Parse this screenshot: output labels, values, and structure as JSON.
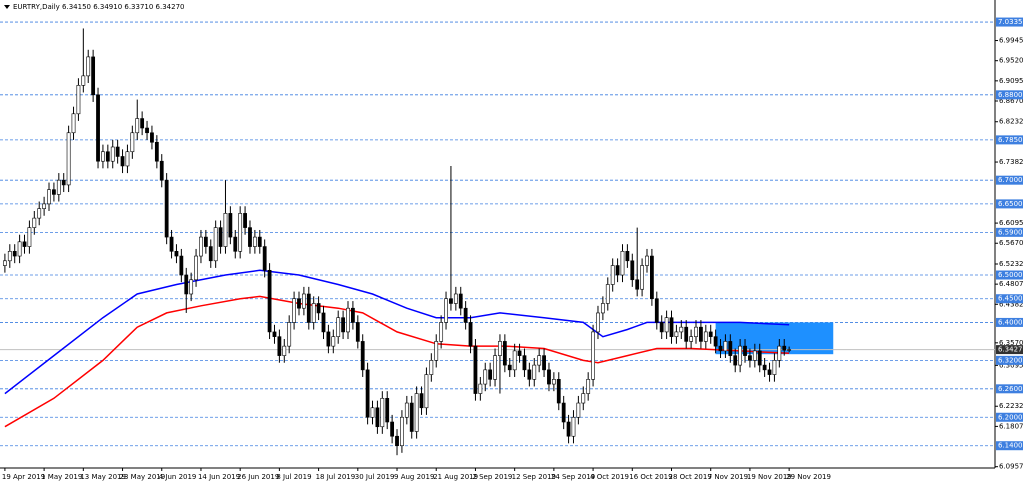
{
  "chart_data": {
    "type": "candlestick",
    "title": "EURTRY,Daily  6.34150 6.34910 6.33710 6.34270",
    "xlim": [
      -1,
      202
    ],
    "ylim": [
      6.093,
      7.08
    ],
    "up_color": "#ffffff",
    "down_color": "#000000",
    "xticks": [
      {
        "value": 0,
        "label": "19 Apr 2019"
      },
      {
        "value": 8,
        "label": "1 May 2019"
      },
      {
        "value": 16,
        "label": "13 May 2019"
      },
      {
        "value": 24,
        "label": "23 May 2019"
      },
      {
        "value": 32,
        "label": "4 Jun 2019"
      },
      {
        "value": 40,
        "label": "14 Jun 2019"
      },
      {
        "value": 48,
        "label": "26 Jun 2019"
      },
      {
        "value": 56,
        "label": "8 Jul 2019"
      },
      {
        "value": 64,
        "label": "18 Jul 2019"
      },
      {
        "value": 72,
        "label": "30 Jul 2019"
      },
      {
        "value": 80,
        "label": "9 Aug 2019"
      },
      {
        "value": 88,
        "label": "21 Aug 2019"
      },
      {
        "value": 96,
        "label": "2 Sep 2019"
      },
      {
        "value": 104,
        "label": "12 Sep 2019"
      },
      {
        "value": 112,
        "label": "24 Sep 2019"
      },
      {
        "value": 120,
        "label": "4 Oct 2019"
      },
      {
        "value": 128,
        "label": "16 Oct 2019"
      },
      {
        "value": 136,
        "label": "28 Oct 2019"
      },
      {
        "value": 144,
        "label": "7 Nov 2019"
      },
      {
        "value": 152,
        "label": "19 Nov 2019"
      },
      {
        "value": 160,
        "label": "29 Nov 2019"
      }
    ],
    "yticks": [
      {
        "value": 6.9945,
        "label": "6.99450"
      },
      {
        "value": 6.952,
        "label": "6.95200"
      },
      {
        "value": 6.9095,
        "label": "6.90950"
      },
      {
        "value": 6.867,
        "label": "6.86700"
      },
      {
        "value": 6.82325,
        "label": "6.82325"
      },
      {
        "value": 6.73825,
        "label": "6.73825"
      },
      {
        "value": 6.6095,
        "label": "6.60950"
      },
      {
        "value": 6.567,
        "label": "6.56700"
      },
      {
        "value": 6.52325,
        "label": "6.52325"
      },
      {
        "value": 6.48075,
        "label": "6.48075"
      },
      {
        "value": 6.43825,
        "label": "6.43825"
      },
      {
        "value": 6.357,
        "label": "6.35700"
      },
      {
        "value": 6.3095,
        "label": "6.30950"
      },
      {
        "value": 6.22325,
        "label": "6.22325"
      },
      {
        "value": 6.18075,
        "label": "6.18075"
      },
      {
        "value": 6.09575,
        "label": "6.09575"
      }
    ],
    "levels": {
      "color": "#3d7fe0",
      "ticks": [
        {
          "value": 7.0335,
          "label": "7.03350"
        },
        {
          "value": 6.88,
          "label": "6.88000"
        },
        {
          "value": 6.785,
          "label": "6.78500"
        },
        {
          "value": 6.7,
          "label": "6.70000"
        },
        {
          "value": 6.65,
          "label": "6.65000"
        },
        {
          "value": 6.59,
          "label": "6.59000"
        },
        {
          "value": 6.5,
          "label": "6.50000"
        },
        {
          "value": 6.45,
          "label": "6.45000"
        },
        {
          "value": 6.4,
          "label": "6.40000"
        },
        {
          "value": 6.32,
          "label": "6.32000"
        },
        {
          "value": 6.26,
          "label": "6.26000"
        },
        {
          "value": 6.2,
          "label": "6.20000"
        },
        {
          "value": 6.14,
          "label": "6.14000"
        }
      ]
    },
    "last_price": {
      "value": 6.3427,
      "label": "6.34270"
    },
    "zone": {
      "color": "#1e90ff",
      "x": [
        145,
        169
      ],
      "y": [
        6.4,
        6.333
      ]
    },
    "series": [
      {
        "color": "#0000ff",
        "x": [
          0,
          10,
          20,
          27,
          35,
          45,
          52,
          60,
          68,
          75,
          82,
          88,
          95,
          101,
          110,
          118,
          122,
          127,
          131,
          140,
          150,
          160
        ],
        "values": [
          6.25,
          6.33,
          6.41,
          6.46,
          6.48,
          6.5,
          6.51,
          6.5,
          6.48,
          6.46,
          6.43,
          6.41,
          6.41,
          6.42,
          6.41,
          6.4,
          6.37,
          6.385,
          6.4,
          6.4,
          6.4,
          6.395
        ]
      },
      {
        "color": "#ff0000",
        "x": [
          0,
          10,
          20,
          27,
          33,
          40,
          48,
          52,
          60,
          68,
          73,
          80,
          88,
          95,
          102,
          110,
          118,
          121,
          127,
          133,
          140,
          150,
          160
        ],
        "values": [
          6.18,
          6.24,
          6.32,
          6.39,
          6.42,
          6.435,
          6.45,
          6.455,
          6.44,
          6.43,
          6.42,
          6.38,
          6.355,
          6.35,
          6.35,
          6.345,
          6.32,
          6.315,
          6.33,
          6.345,
          6.345,
          6.34,
          6.335
        ]
      }
    ],
    "candles": [
      [
        6.52,
        6.545,
        6.505,
        6.53
      ],
      [
        6.53,
        6.565,
        6.515,
        6.55
      ],
      [
        6.55,
        6.565,
        6.525,
        6.54
      ],
      [
        6.54,
        6.585,
        6.525,
        6.57
      ],
      [
        6.57,
        6.585,
        6.545,
        6.56
      ],
      [
        6.56,
        6.615,
        6.545,
        6.6
      ],
      [
        6.6,
        6.635,
        6.585,
        6.62
      ],
      [
        6.62,
        6.655,
        6.605,
        6.64
      ],
      [
        6.64,
        6.665,
        6.625,
        6.65
      ],
      [
        6.65,
        6.695,
        6.635,
        6.68
      ],
      [
        6.68,
        6.695,
        6.655,
        6.67
      ],
      [
        6.67,
        6.715,
        6.655,
        6.7
      ],
      [
        6.7,
        6.715,
        6.675,
        6.69
      ],
      [
        6.69,
        6.815,
        6.675,
        6.8
      ],
      [
        6.8,
        6.855,
        6.785,
        6.84
      ],
      [
        6.84,
        6.915,
        6.825,
        6.9
      ],
      [
        6.9,
        7.02,
        6.885,
        6.92
      ],
      [
        6.92,
        6.975,
        6.905,
        6.96
      ],
      [
        6.96,
        6.975,
        6.865,
        6.88
      ],
      [
        6.88,
        6.895,
        6.725,
        6.74
      ],
      [
        6.74,
        6.775,
        6.725,
        6.76
      ],
      [
        6.76,
        6.775,
        6.725,
        6.74
      ],
      [
        6.74,
        6.785,
        6.725,
        6.77
      ],
      [
        6.77,
        6.785,
        6.735,
        6.75
      ],
      [
        6.75,
        6.765,
        6.715,
        6.73
      ],
      [
        6.73,
        6.775,
        6.715,
        6.76
      ],
      [
        6.76,
        6.815,
        6.745,
        6.8
      ],
      [
        6.8,
        6.87,
        6.785,
        6.83
      ],
      [
        6.83,
        6.845,
        6.795,
        6.81
      ],
      [
        6.81,
        6.825,
        6.785,
        6.8
      ],
      [
        6.8,
        6.815,
        6.765,
        6.78
      ],
      [
        6.78,
        6.795,
        6.725,
        6.74
      ],
      [
        6.74,
        6.755,
        6.685,
        6.7
      ],
      [
        6.7,
        6.715,
        6.565,
        6.58
      ],
      [
        6.58,
        6.595,
        6.535,
        6.55
      ],
      [
        6.55,
        6.565,
        6.525,
        6.54
      ],
      [
        6.54,
        6.555,
        6.485,
        6.5
      ],
      [
        6.5,
        6.515,
        6.42,
        6.46
      ],
      [
        6.46,
        6.505,
        6.445,
        6.49
      ],
      [
        6.49,
        6.555,
        6.475,
        6.54
      ],
      [
        6.54,
        6.595,
        6.525,
        6.58
      ],
      [
        6.58,
        6.595,
        6.545,
        6.56
      ],
      [
        6.56,
        6.575,
        6.515,
        6.53
      ],
      [
        6.53,
        6.615,
        6.515,
        6.6
      ],
      [
        6.6,
        6.615,
        6.545,
        6.56
      ],
      [
        6.56,
        6.7,
        6.545,
        6.63
      ],
      [
        6.63,
        6.645,
        6.565,
        6.58
      ],
      [
        6.58,
        6.595,
        6.535,
        6.55
      ],
      [
        6.55,
        6.645,
        6.535,
        6.63
      ],
      [
        6.63,
        6.645,
        6.585,
        6.6
      ],
      [
        6.6,
        6.615,
        6.545,
        6.56
      ],
      [
        6.56,
        6.595,
        6.545,
        6.58
      ],
      [
        6.58,
        6.595,
        6.545,
        6.56
      ],
      [
        6.56,
        6.575,
        6.495,
        6.51
      ],
      [
        6.51,
        6.525,
        6.365,
        6.38
      ],
      [
        6.38,
        6.395,
        6.355,
        6.37
      ],
      [
        6.37,
        6.385,
        6.315,
        6.33
      ],
      [
        6.33,
        6.365,
        6.315,
        6.35
      ],
      [
        6.35,
        6.415,
        6.335,
        6.4
      ],
      [
        6.4,
        6.465,
        6.385,
        6.45
      ],
      [
        6.45,
        6.465,
        6.415,
        6.43
      ],
      [
        6.43,
        6.475,
        6.415,
        6.46
      ],
      [
        6.46,
        6.475,
        6.385,
        6.4
      ],
      [
        6.4,
        6.455,
        6.385,
        6.44
      ],
      [
        6.44,
        6.455,
        6.405,
        6.42
      ],
      [
        6.42,
        6.435,
        6.365,
        6.38
      ],
      [
        6.38,
        6.395,
        6.335,
        6.35
      ],
      [
        6.35,
        6.385,
        6.335,
        6.37
      ],
      [
        6.37,
        6.425,
        6.355,
        6.41
      ],
      [
        6.41,
        6.425,
        6.365,
        6.38
      ],
      [
        6.38,
        6.445,
        6.365,
        6.43
      ],
      [
        6.43,
        6.445,
        6.385,
        6.4
      ],
      [
        6.4,
        6.415,
        6.345,
        6.36
      ],
      [
        6.36,
        6.375,
        6.285,
        6.3
      ],
      [
        6.3,
        6.315,
        6.185,
        6.2
      ],
      [
        6.2,
        6.235,
        6.185,
        6.22
      ],
      [
        6.22,
        6.235,
        6.165,
        6.18
      ],
      [
        6.18,
        6.255,
        6.165,
        6.24
      ],
      [
        6.24,
        6.255,
        6.175,
        6.19
      ],
      [
        6.19,
        6.205,
        6.145,
        6.16
      ],
      [
        6.16,
        6.175,
        6.12,
        6.14
      ],
      [
        6.14,
        6.215,
        6.125,
        6.2
      ],
      [
        6.2,
        6.245,
        6.185,
        6.23
      ],
      [
        6.23,
        6.245,
        6.155,
        6.17
      ],
      [
        6.17,
        6.265,
        6.155,
        6.25
      ],
      [
        6.25,
        6.265,
        6.205,
        6.22
      ],
      [
        6.22,
        6.305,
        6.205,
        6.29
      ],
      [
        6.29,
        6.335,
        6.275,
        6.32
      ],
      [
        6.32,
        6.375,
        6.305,
        6.36
      ],
      [
        6.36,
        6.415,
        6.345,
        6.4
      ],
      [
        6.4,
        6.465,
        6.385,
        6.45
      ],
      [
        6.45,
        6.73,
        6.425,
        6.44
      ],
      [
        6.44,
        6.475,
        6.425,
        6.46
      ],
      [
        6.46,
        6.475,
        6.415,
        6.43
      ],
      [
        6.43,
        6.445,
        6.385,
        6.4
      ],
      [
        6.4,
        6.415,
        6.335,
        6.35
      ],
      [
        6.35,
        6.365,
        6.235,
        6.25
      ],
      [
        6.25,
        6.285,
        6.235,
        6.27
      ],
      [
        6.27,
        6.315,
        6.255,
        6.3
      ],
      [
        6.3,
        6.315,
        6.265,
        6.28
      ],
      [
        6.28,
        6.345,
        6.265,
        6.33
      ],
      [
        6.33,
        6.375,
        6.25,
        6.36
      ],
      [
        6.36,
        6.375,
        6.295,
        6.31
      ],
      [
        6.31,
        6.325,
        6.285,
        6.3
      ],
      [
        6.3,
        6.355,
        6.285,
        6.34
      ],
      [
        6.34,
        6.355,
        6.315,
        6.33
      ],
      [
        6.33,
        6.345,
        6.285,
        6.3
      ],
      [
        6.3,
        6.315,
        6.265,
        6.28
      ],
      [
        6.28,
        6.325,
        6.265,
        6.31
      ],
      [
        6.31,
        6.345,
        6.295,
        6.33
      ],
      [
        6.33,
        6.345,
        6.285,
        6.3
      ],
      [
        6.3,
        6.315,
        6.255,
        6.27
      ],
      [
        6.27,
        6.295,
        6.255,
        6.28
      ],
      [
        6.28,
        6.295,
        6.215,
        6.23
      ],
      [
        6.23,
        6.245,
        6.175,
        6.19
      ],
      [
        6.19,
        6.205,
        6.145,
        6.16
      ],
      [
        6.16,
        6.215,
        6.145,
        6.2
      ],
      [
        6.2,
        6.245,
        6.185,
        6.23
      ],
      [
        6.23,
        6.265,
        6.215,
        6.25
      ],
      [
        6.25,
        6.295,
        6.235,
        6.28
      ],
      [
        6.28,
        6.395,
        6.265,
        6.38
      ],
      [
        6.38,
        6.435,
        6.365,
        6.42
      ],
      [
        6.42,
        6.455,
        6.405,
        6.44
      ],
      [
        6.44,
        6.495,
        6.425,
        6.48
      ],
      [
        6.48,
        6.535,
        6.465,
        6.52
      ],
      [
        6.52,
        6.535,
        6.485,
        6.5
      ],
      [
        6.5,
        6.565,
        6.485,
        6.55
      ],
      [
        6.55,
        6.565,
        6.515,
        6.53
      ],
      [
        6.53,
        6.545,
        6.475,
        6.49
      ],
      [
        6.49,
        6.6,
        6.455,
        6.47
      ],
      [
        6.47,
        6.535,
        6.455,
        6.52
      ],
      [
        6.52,
        6.555,
        6.505,
        6.54
      ],
      [
        6.54,
        6.555,
        6.435,
        6.45
      ],
      [
        6.45,
        6.465,
        6.385,
        6.4
      ],
      [
        6.4,
        6.415,
        6.365,
        6.38
      ],
      [
        6.38,
        6.425,
        6.365,
        6.41
      ],
      [
        6.41,
        6.425,
        6.355,
        6.37
      ],
      [
        6.37,
        6.395,
        6.355,
        6.38
      ],
      [
        6.38,
        6.405,
        6.365,
        6.39
      ],
      [
        6.39,
        6.405,
        6.345,
        6.36
      ],
      [
        6.36,
        6.385,
        6.345,
        6.37
      ],
      [
        6.37,
        6.405,
        6.355,
        6.39
      ],
      [
        6.39,
        6.405,
        6.345,
        6.36
      ],
      [
        6.36,
        6.395,
        6.345,
        6.38
      ],
      [
        6.38,
        6.395,
        6.355,
        6.37
      ],
      [
        6.37,
        6.385,
        6.335,
        6.35
      ],
      [
        6.35,
        6.365,
        6.325,
        6.34
      ],
      [
        6.34,
        6.375,
        6.325,
        6.36
      ],
      [
        6.36,
        6.375,
        6.315,
        6.33
      ],
      [
        6.33,
        6.345,
        6.295,
        6.31
      ],
      [
        6.31,
        6.365,
        6.295,
        6.35
      ],
      [
        6.35,
        6.365,
        6.315,
        6.33
      ],
      [
        6.33,
        6.345,
        6.305,
        6.32
      ],
      [
        6.32,
        6.355,
        6.305,
        6.34
      ],
      [
        6.34,
        6.355,
        6.295,
        6.31
      ],
      [
        6.31,
        6.325,
        6.285,
        6.3
      ],
      [
        6.3,
        6.315,
        6.275,
        6.29
      ],
      [
        6.29,
        6.335,
        6.275,
        6.32
      ],
      [
        6.32,
        6.365,
        6.305,
        6.35
      ],
      [
        6.35,
        6.365,
        6.33,
        6.3415
      ],
      [
        6.3415,
        6.3491,
        6.3371,
        6.3427
      ]
    ]
  }
}
